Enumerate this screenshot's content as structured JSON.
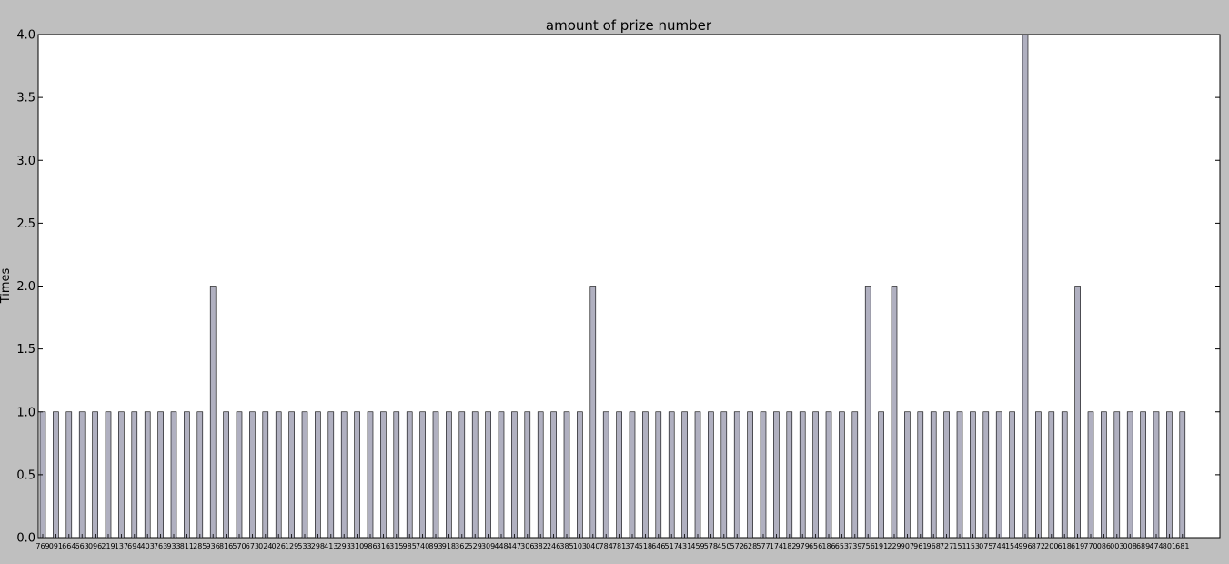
{
  "chart_data": {
    "type": "bar",
    "title": "amount of prize number",
    "xlabel": "",
    "ylabel": "Times",
    "ylim": [
      0,
      4.0
    ],
    "yticks": [
      "0.0",
      "0.5",
      "1.0",
      "1.5",
      "2.0",
      "2.5",
      "3.0",
      "3.5",
      "4.0"
    ],
    "grid": false,
    "bar_color": "#b0b0c0",
    "bar_edge_color": "#000000",
    "categories": [
      "769",
      "091",
      "664",
      "663",
      "096",
      "219",
      "137",
      "694",
      "403",
      "763",
      "933",
      "811",
      "285",
      "936",
      "816",
      "570",
      "673",
      "024",
      "026",
      "129",
      "533",
      "298",
      "413",
      "293",
      "310",
      "986",
      "316",
      "315",
      "985",
      "740",
      "893",
      "918",
      "362",
      "529",
      "309",
      "448",
      "447",
      "306",
      "382",
      "246",
      "385",
      "103",
      "040",
      "784",
      "781",
      "374",
      "518",
      "646",
      "517",
      "431",
      "459",
      "578",
      "450",
      "572",
      "628",
      "577",
      "174",
      "182",
      "979",
      "656",
      "186",
      "653",
      "739",
      "756",
      "191",
      "229",
      "907",
      "961",
      "968",
      "727",
      "151",
      "153",
      "075",
      "744",
      "154",
      "996",
      "872",
      "200",
      "618",
      "619",
      "770",
      "086",
      "003",
      "008",
      "689",
      "474",
      "801",
      "681"
    ],
    "values": [
      1,
      1,
      1,
      1,
      1,
      1,
      1,
      1,
      1,
      1,
      1,
      1,
      1,
      2,
      1,
      1,
      1,
      1,
      1,
      1,
      1,
      1,
      1,
      1,
      1,
      1,
      1,
      1,
      1,
      1,
      1,
      1,
      1,
      1,
      1,
      1,
      1,
      1,
      1,
      1,
      1,
      1,
      2,
      1,
      1,
      1,
      1,
      1,
      1,
      1,
      1,
      1,
      1,
      1,
      1,
      1,
      1,
      1,
      1,
      1,
      1,
      1,
      1,
      2,
      1,
      2,
      1,
      1,
      1,
      1,
      1,
      1,
      1,
      1,
      1,
      4,
      1,
      1,
      1,
      2,
      1,
      1,
      1,
      1,
      1,
      1,
      1,
      1
    ]
  }
}
